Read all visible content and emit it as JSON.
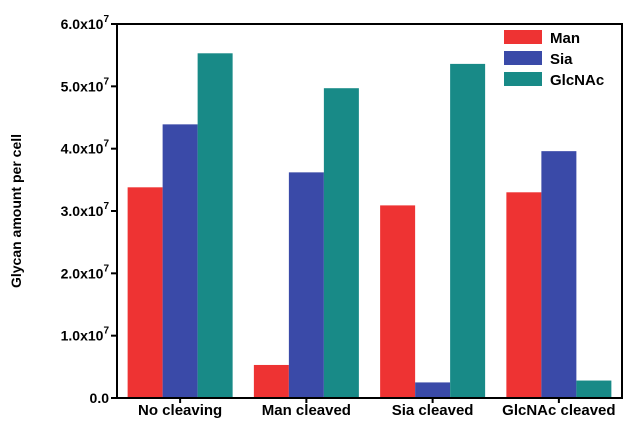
{
  "chart_data": {
    "type": "bar",
    "title": "",
    "xlabel": "",
    "ylabel": "Glycan amount per cell",
    "ylim": [
      0,
      60000000
    ],
    "categories": [
      "No cleaving",
      "Man cleaved",
      "Sia cleaved",
      "GlcNAc cleaved"
    ],
    "yticks": [
      {
        "value": 0,
        "mantissa": "0.0",
        "exponent": ""
      },
      {
        "value": 10000000,
        "mantissa": "1.0x10",
        "exponent": "7"
      },
      {
        "value": 20000000,
        "mantissa": "2.0x10",
        "exponent": "7"
      },
      {
        "value": 30000000,
        "mantissa": "3.0x10",
        "exponent": "7"
      },
      {
        "value": 40000000,
        "mantissa": "4.0x10",
        "exponent": "7"
      },
      {
        "value": 50000000,
        "mantissa": "5.0x10",
        "exponent": "7"
      },
      {
        "value": 60000000,
        "mantissa": "6.0x10",
        "exponent": "7"
      }
    ],
    "series": [
      {
        "name": "Man",
        "color": "#ee3333",
        "values": [
          33800000,
          5300000,
          30900000,
          33000000
        ]
      },
      {
        "name": "Sia",
        "color": "#3a4aa8",
        "values": [
          43900000,
          36200000,
          2500000,
          39600000
        ]
      },
      {
        "name": "GlcNAc",
        "color": "#188a87",
        "values": [
          55300000,
          49700000,
          53600000,
          2800000
        ]
      }
    ],
    "legend_position": "top-right",
    "grid": false
  }
}
